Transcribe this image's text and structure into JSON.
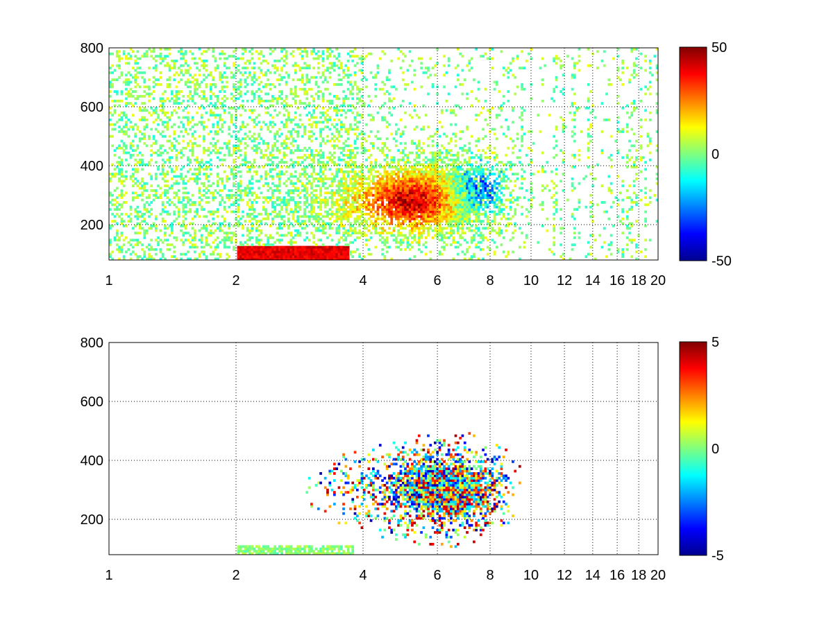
{
  "chart_data": [
    {
      "type": "heatmap",
      "title": "",
      "xlabel": "",
      "ylabel": "",
      "xlim": [
        1,
        20
      ],
      "ylim": [
        80,
        800
      ],
      "x_scale": "log",
      "grid": true,
      "grid_style": "dotted",
      "xticks": [
        1,
        2,
        4,
        6,
        8,
        10,
        12,
        14,
        16,
        18,
        20
      ],
      "xtick_labels": [
        "1",
        "2",
        "4",
        "6",
        "8",
        "10",
        "12",
        "14",
        "16",
        "18",
        "20"
      ],
      "yticks": [
        200,
        400,
        600,
        800
      ],
      "ytick_labels": [
        "200",
        "400",
        "600",
        "800"
      ],
      "colormap": "jet",
      "clim": [
        -50,
        50
      ],
      "colorbar_ticks": [
        50,
        0,
        -50
      ],
      "colorbar_labels": [
        "50",
        "0",
        "-50"
      ],
      "description_values": {
        "high_positive_region": {
          "x_range": [
            4,
            7.5
          ],
          "y_range": [
            150,
            400
          ],
          "value_approx": 40
        },
        "negative_region": {
          "x_range": [
            6.5,
            8.5
          ],
          "y_range": [
            250,
            420
          ],
          "value_approx": -30
        },
        "low_band": {
          "x_range": [
            2,
            3.6
          ],
          "y_range": [
            80,
            120
          ],
          "value_approx": 35
        }
      }
    },
    {
      "type": "heatmap",
      "title": "",
      "xlabel": "",
      "ylabel": "",
      "xlim": [
        1,
        20
      ],
      "ylim": [
        80,
        800
      ],
      "x_scale": "log",
      "grid": true,
      "grid_style": "dotted",
      "xticks": [
        1,
        2,
        4,
        6,
        8,
        10,
        12,
        14,
        16,
        18,
        20
      ],
      "xtick_labels": [
        "1",
        "2",
        "4",
        "6",
        "8",
        "10",
        "12",
        "14",
        "16",
        "18",
        "20"
      ],
      "yticks": [
        200,
        400,
        600,
        800
      ],
      "ytick_labels": [
        "200",
        "400",
        "600",
        "800"
      ],
      "colormap": "jet",
      "clim": [
        -5,
        5
      ],
      "colorbar_ticks": [
        5,
        0,
        -5
      ],
      "colorbar_labels": [
        "5",
        "0",
        "-5"
      ],
      "description_values": {
        "main_cluster": {
          "x_range": [
            3.8,
            9.2
          ],
          "y_range": [
            140,
            520
          ],
          "value_range": [
            -5,
            5
          ]
        },
        "low_band": {
          "x_range": [
            2,
            3.8
          ],
          "y_range": [
            80,
            110
          ],
          "value_approx": 0
        }
      }
    }
  ]
}
